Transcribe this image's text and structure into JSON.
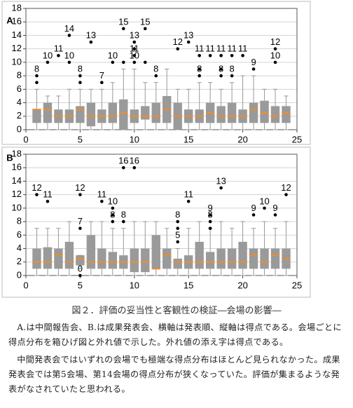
{
  "chart_data": [
    {
      "type": "box",
      "label": "A",
      "xlim": [
        0,
        25
      ],
      "xticks": [
        0,
        5,
        10,
        15,
        20,
        25
      ],
      "ylim": [
        0,
        18
      ],
      "yticks": [
        0,
        2,
        4,
        6,
        8,
        10,
        12,
        14,
        16,
        18
      ],
      "grid": true,
      "box_color": "#9a9a9a",
      "median_color": "#f28c28",
      "boxes": [
        {
          "x": 1,
          "whislo": 0,
          "q1": 1,
          "med": 3,
          "q3": 3,
          "whishi": 6
        },
        {
          "x": 2,
          "whislo": 0,
          "q1": 1,
          "med": 3,
          "q3": 4,
          "whishi": 5
        },
        {
          "x": 3,
          "whislo": 0,
          "q1": 1,
          "med": 2,
          "q3": 3,
          "whishi": 5
        },
        {
          "x": 4,
          "whislo": 0,
          "q1": 1,
          "med": 2,
          "q3": 3,
          "whishi": 6
        },
        {
          "x": 5,
          "whislo": 0,
          "q1": 1,
          "med": 3,
          "q3": 3.5,
          "whishi": 6
        },
        {
          "x": 6,
          "whislo": 0,
          "q1": 0.5,
          "med": 2,
          "q3": 4,
          "whishi": 6
        },
        {
          "x": 7,
          "whislo": 0,
          "q1": 1,
          "med": 2,
          "q3": 3,
          "whishi": 6
        },
        {
          "x": 8,
          "whislo": 0,
          "q1": 1,
          "med": 2,
          "q3": 4,
          "whishi": 7
        },
        {
          "x": 9,
          "whislo": 0,
          "q1": 0,
          "med": 2.5,
          "q3": 4.5,
          "whishi": 9
        },
        {
          "x": 10,
          "whislo": 0,
          "q1": 1,
          "med": 2,
          "q3": 3,
          "whishi": 9
        },
        {
          "x": 11,
          "whislo": 0,
          "q1": 1.5,
          "med": 2,
          "q3": 3.5,
          "whishi": 7
        },
        {
          "x": 12,
          "whislo": 0,
          "q1": 1,
          "med": 2,
          "q3": 4,
          "whishi": 7
        },
        {
          "x": 13,
          "whislo": 0,
          "q1": 1,
          "med": 3,
          "q3": 5,
          "whishi": 9
        },
        {
          "x": 14,
          "whislo": 0,
          "q1": 0,
          "med": 2,
          "q3": 4,
          "whishi": 6
        },
        {
          "x": 15,
          "whislo": 0,
          "q1": 1,
          "med": 2,
          "q3": 3,
          "whishi": 6
        },
        {
          "x": 16,
          "whislo": 0,
          "q1": 1,
          "med": 2,
          "q3": 3,
          "whishi": 7
        },
        {
          "x": 17,
          "whislo": 0,
          "q1": 1,
          "med": 2.5,
          "q3": 4,
          "whishi": 7
        },
        {
          "x": 18,
          "whislo": 0,
          "q1": 1,
          "med": 2,
          "q3": 3.5,
          "whishi": 6
        },
        {
          "x": 19,
          "whislo": 0,
          "q1": 1,
          "med": 2,
          "q3": 4,
          "whishi": 7
        },
        {
          "x": 20,
          "whislo": 0,
          "q1": 1,
          "med": 2,
          "q3": 3,
          "whishi": 8
        },
        {
          "x": 21,
          "whislo": 0,
          "q1": 1,
          "med": 3,
          "q3": 4,
          "whishi": 8
        },
        {
          "x": 22,
          "whislo": 0,
          "q1": 1,
          "med": 2.5,
          "q3": 4.3,
          "whishi": 6
        },
        {
          "x": 23,
          "whislo": 0,
          "q1": 1,
          "med": 2,
          "q3": 3.5,
          "whishi": 6
        },
        {
          "x": 24,
          "whislo": 0,
          "q1": 1,
          "med": 2.5,
          "q3": 3.5,
          "whishi": 5
        }
      ],
      "outliers": [
        {
          "x": 1,
          "y": 8,
          "label": "8"
        },
        {
          "x": 1,
          "y": 7
        },
        {
          "x": 2,
          "y": 10,
          "label": "10"
        },
        {
          "x": 3,
          "y": 11,
          "label": "11"
        },
        {
          "x": 4,
          "y": 14,
          "label": "14"
        },
        {
          "x": 4,
          "y": 10,
          "label": "10"
        },
        {
          "x": 5,
          "y": 8,
          "label": "8"
        },
        {
          "x": 5,
          "y": 7
        },
        {
          "x": 6,
          "y": 13,
          "label": "13"
        },
        {
          "x": 7,
          "y": 7,
          "label": "7"
        },
        {
          "x": 8,
          "y": 10,
          "label": "10"
        },
        {
          "x": 9,
          "y": 15,
          "label": "15"
        },
        {
          "x": 9,
          "y": 10
        },
        {
          "x": 10,
          "y": 13,
          "label": "13"
        },
        {
          "x": 10,
          "y": 12
        },
        {
          "x": 10,
          "y": 11,
          "label": "11"
        },
        {
          "x": 10,
          "y": 10,
          "label": "10"
        },
        {
          "x": 11,
          "y": 15,
          "label": "15"
        },
        {
          "x": 11,
          "y": 10
        },
        {
          "x": 12,
          "y": 8,
          "label": "8"
        },
        {
          "x": 14,
          "y": 12,
          "label": "12"
        },
        {
          "x": 15,
          "y": 13,
          "label": "13"
        },
        {
          "x": 16,
          "y": 11,
          "label": "11"
        },
        {
          "x": 16,
          "y": 9
        },
        {
          "x": 16,
          "y": 8,
          "label": "8"
        },
        {
          "x": 17,
          "y": 11,
          "label": "11"
        },
        {
          "x": 18,
          "y": 11,
          "label": "11"
        },
        {
          "x": 18,
          "y": 9
        },
        {
          "x": 18,
          "y": 8,
          "label": "8"
        },
        {
          "x": 19,
          "y": 11,
          "label": "11"
        },
        {
          "x": 19,
          "y": 8,
          "label": "8"
        },
        {
          "x": 20,
          "y": 11,
          "label": "11"
        },
        {
          "x": 21,
          "y": 9,
          "label": "9"
        },
        {
          "x": 23,
          "y": 12,
          "label": "12"
        },
        {
          "x": 23,
          "y": 10,
          "label": "10"
        }
      ]
    },
    {
      "type": "box",
      "label": "B",
      "xlim": [
        0,
        25
      ],
      "xticks": [
        0,
        5,
        10,
        15,
        20,
        25
      ],
      "ylim": [
        0,
        18
      ],
      "yticks": [
        0,
        2,
        4,
        6,
        8,
        10,
        12,
        14,
        16,
        18
      ],
      "grid": true,
      "box_color": "#9a9a9a",
      "median_color": "#f28c28",
      "boxes": [
        {
          "x": 1,
          "whislo": 0,
          "q1": 1,
          "med": 2,
          "q3": 4,
          "whishi": 7
        },
        {
          "x": 2,
          "whislo": 0,
          "q1": 1,
          "med": 2,
          "q3": 4.2,
          "whishi": 7
        },
        {
          "x": 3,
          "whislo": 0,
          "q1": 1,
          "med": 3,
          "q3": 4,
          "whishi": 7
        },
        {
          "x": 4,
          "whislo": 0,
          "q1": 1,
          "med": 2,
          "q3": 5,
          "whishi": 8
        },
        {
          "x": 5,
          "whislo": 1,
          "q1": 1.5,
          "med": 2.5,
          "q3": 3,
          "whishi": 3
        },
        {
          "x": 6,
          "whislo": 0,
          "q1": 1,
          "med": 2,
          "q3": 6,
          "whishi": 8
        },
        {
          "x": 7,
          "whislo": 0,
          "q1": 1,
          "med": 2,
          "q3": 4,
          "whishi": 8
        },
        {
          "x": 8,
          "whislo": 0,
          "q1": 1,
          "med": 2,
          "q3": 3.5,
          "whishi": 7
        },
        {
          "x": 9,
          "whislo": 0,
          "q1": 1,
          "med": 2,
          "q3": 3,
          "whishi": 7
        },
        {
          "x": 10,
          "whislo": 0,
          "q1": 0.5,
          "med": 2,
          "q3": 4,
          "whishi": 8
        },
        {
          "x": 11,
          "whislo": 0,
          "q1": 0.5,
          "med": 2,
          "q3": 4,
          "whishi": 8
        },
        {
          "x": 12,
          "whislo": 0,
          "q1": 1,
          "med": 1,
          "q3": 6,
          "whishi": 8
        },
        {
          "x": 13,
          "whislo": 0,
          "q1": 1,
          "med": 3,
          "q3": 4,
          "whishi": 7
        },
        {
          "x": 14,
          "whislo": 0,
          "q1": 1,
          "med": 2,
          "q3": 2.5,
          "whishi": 4
        },
        {
          "x": 15,
          "whislo": 0,
          "q1": 1,
          "med": 2,
          "q3": 3,
          "whishi": 7
        },
        {
          "x": 16,
          "whislo": 0,
          "q1": 1,
          "med": 2,
          "q3": 5,
          "whishi": 8
        },
        {
          "x": 17,
          "whislo": 0,
          "q1": 1,
          "med": 2,
          "q3": 3.5,
          "whishi": 7
        },
        {
          "x": 18,
          "whislo": 0,
          "q1": 1,
          "med": 2,
          "q3": 4,
          "whishi": 8
        },
        {
          "x": 19,
          "whislo": 0,
          "q1": 1,
          "med": 2,
          "q3": 4,
          "whishi": 7
        },
        {
          "x": 20,
          "whislo": 0,
          "q1": 1,
          "med": 2,
          "q3": 5,
          "whishi": 8
        },
        {
          "x": 21,
          "whislo": 0,
          "q1": 1,
          "med": 3,
          "q3": 4,
          "whishi": 7
        },
        {
          "x": 22,
          "whislo": 0,
          "q1": 1,
          "med": 2,
          "q3": 4,
          "whishi": 8
        },
        {
          "x": 23,
          "whislo": 0,
          "q1": 1,
          "med": 3,
          "q3": 4,
          "whishi": 7
        },
        {
          "x": 24,
          "whislo": 0,
          "q1": 1,
          "med": 2.5,
          "q3": 4,
          "whishi": 8
        }
      ],
      "outliers": [
        {
          "x": 1,
          "y": 12,
          "label": "12"
        },
        {
          "x": 2,
          "y": 11,
          "label": "11"
        },
        {
          "x": 5,
          "y": 12,
          "label": "12"
        },
        {
          "x": 5,
          "y": 7,
          "label": "7"
        },
        {
          "x": 5,
          "y": 0,
          "label": "0"
        },
        {
          "x": 7,
          "y": 11,
          "label": "11"
        },
        {
          "x": 8,
          "y": 10,
          "label": "10"
        },
        {
          "x": 8,
          "y": 9
        },
        {
          "x": 8,
          "y": 8,
          "label": "8"
        },
        {
          "x": 9,
          "y": 16,
          "label": "16"
        },
        {
          "x": 9,
          "y": 8,
          "label": "8"
        },
        {
          "x": 10,
          "y": 16,
          "label": "16"
        },
        {
          "x": 14,
          "y": 8,
          "label": "8"
        },
        {
          "x": 14,
          "y": 7
        },
        {
          "x": 14,
          "y": 5,
          "label": "5"
        },
        {
          "x": 15,
          "y": 11,
          "label": "11"
        },
        {
          "x": 17,
          "y": 9,
          "label": "9"
        },
        {
          "x": 17,
          "y": 8,
          "label": "8"
        },
        {
          "x": 17,
          "y": 7
        },
        {
          "x": 18,
          "y": 13,
          "label": "13"
        },
        {
          "x": 21,
          "y": 9,
          "label": "9"
        },
        {
          "x": 22,
          "y": 10,
          "label": "10"
        },
        {
          "x": 23,
          "y": 9,
          "label": "9"
        },
        {
          "x": 24,
          "y": 12,
          "label": "12"
        }
      ]
    }
  ],
  "caption": {
    "title": "図２．評価の妥当性と客観性の検証―会場の影響―",
    "paragraphs": [
      "A.は中間報告会、B.は成果発表会、横軸は発表順、縦軸は得点である。会場ごとに得点分布を箱ひげ図と外れ値で示した。外れ値の添え字は得点である。",
      "中間発表会ではいずれの会場でも極端な得点分布はほとんど見られなかった。成果発表会では第5会場、第14会場の得点分布が狭くなっていた。評価が集まるような発表がなされていたと思われる。"
    ]
  }
}
